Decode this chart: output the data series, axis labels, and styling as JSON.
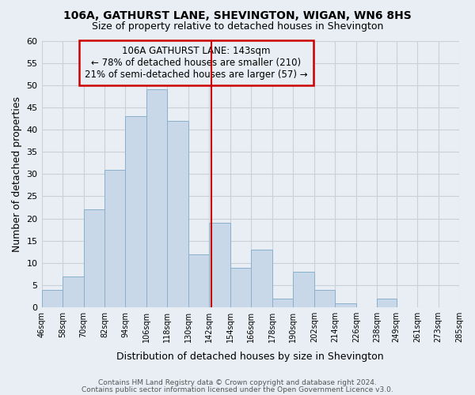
{
  "title": "106A, GATHURST LANE, SHEVINGTON, WIGAN, WN6 8HS",
  "subtitle": "Size of property relative to detached houses in Shevington",
  "xlabel": "Distribution of detached houses by size in Shevington",
  "ylabel": "Number of detached properties",
  "footer_line1": "Contains HM Land Registry data © Crown copyright and database right 2024.",
  "footer_line2": "Contains public sector information licensed under the Open Government Licence v3.0.",
  "annotation_title": "106A GATHURST LANE: 143sqm",
  "annotation_line2": "← 78% of detached houses are smaller (210)",
  "annotation_line3": "21% of semi-detached houses are larger (57) →",
  "property_line_x": 143,
  "bar_edges": [
    46,
    58,
    70,
    82,
    94,
    106,
    118,
    130,
    142,
    154,
    166,
    178,
    190,
    202,
    214,
    226,
    238,
    249,
    261,
    273,
    285
  ],
  "bar_heights": [
    4,
    7,
    22,
    31,
    43,
    49,
    42,
    12,
    19,
    9,
    13,
    2,
    8,
    4,
    1,
    0,
    2,
    0,
    0,
    0
  ],
  "bar_color": "#c8d8e8",
  "bar_edge_color": "#8ab0cc",
  "line_color": "#cc0000",
  "annotation_box_edge_color": "#cc0000",
  "grid_color": "#c8d0d8",
  "background_color": "#e8eef4",
  "plot_bg_color": "#e8eef4",
  "ylim": [
    0,
    60
  ],
  "yticks": [
    0,
    5,
    10,
    15,
    20,
    25,
    30,
    35,
    40,
    45,
    50,
    55,
    60
  ]
}
